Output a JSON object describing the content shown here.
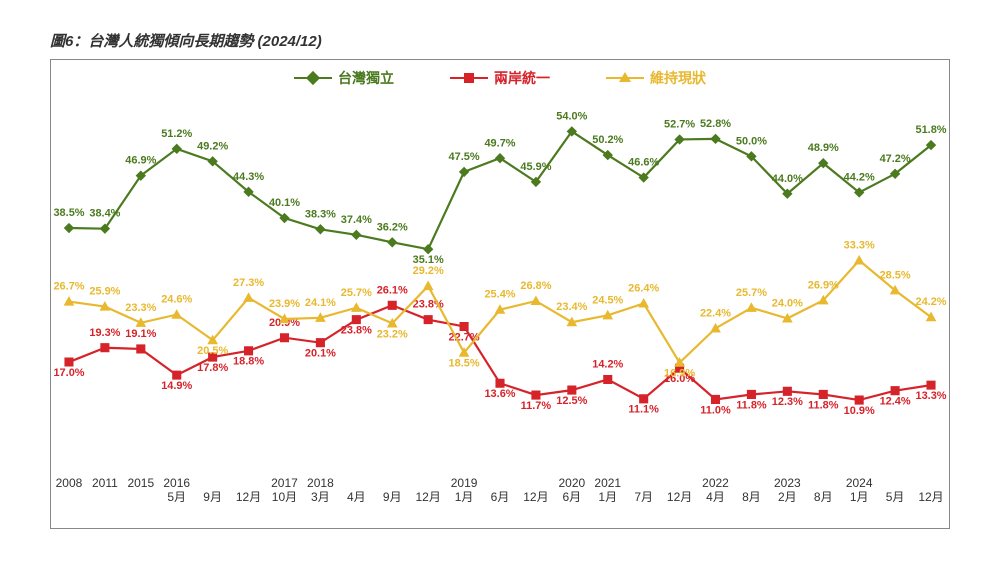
{
  "title": "圖6：台灣人統獨傾向長期趨勢  (2024/12)",
  "chart": {
    "type": "line",
    "background_color": "#ffffff",
    "border_color": "#888888",
    "label_fontsize": 11,
    "title_fontsize": 15,
    "ylim": [
      0,
      60
    ],
    "marker_size": 9,
    "line_width": 2.2,
    "categories": [
      "2008",
      "2011",
      "2015",
      "2016\n5月",
      "\n9月",
      "\n12月",
      "2017\n10月",
      "2018\n3月",
      "\n4月",
      "\n9月",
      "\n12月",
      "2019\n1月",
      "\n6月",
      "\n12月",
      "2020\n6月",
      "2021\n1月",
      "\n7月",
      "\n12月",
      "2022\n4月",
      "\n8月",
      "2023\n2月",
      "\n8月",
      "2024\n1月",
      "\n5月",
      "\n12月"
    ],
    "series": [
      {
        "name": "台灣獨立",
        "color": "#4b7a1f",
        "marker": "diamond",
        "values": [
          38.5,
          38.4,
          46.9,
          51.2,
          49.2,
          44.3,
          40.1,
          38.3,
          37.4,
          36.2,
          35.1,
          47.5,
          49.7,
          45.9,
          54.0,
          50.2,
          46.6,
          52.7,
          52.8,
          50.0,
          44.0,
          48.9,
          44.2,
          47.2,
          51.8
        ],
        "label_offset": [
          -12,
          -12,
          -12,
          -12,
          -12,
          -12,
          -12,
          -12,
          -12,
          -12,
          14,
          -12,
          -12,
          -12,
          -12,
          -12,
          -12,
          -12,
          -12,
          -12,
          -12,
          -12,
          -12,
          -12,
          -12
        ]
      },
      {
        "name": "兩岸統一",
        "color": "#d6232a",
        "marker": "square",
        "values": [
          17.0,
          19.3,
          19.1,
          14.9,
          17.8,
          18.8,
          20.9,
          20.1,
          23.8,
          26.1,
          23.8,
          22.7,
          13.6,
          11.7,
          12.5,
          14.2,
          11.1,
          16.0,
          11.0,
          11.8,
          12.3,
          11.8,
          10.9,
          12.4,
          13.3
        ],
        "label_offset": [
          14,
          -12,
          -12,
          14,
          14,
          14,
          -12,
          14,
          14,
          -12,
          -12,
          14,
          14,
          14,
          14,
          -12,
          14,
          14,
          14,
          14,
          14,
          14,
          14,
          14,
          14
        ]
      },
      {
        "name": "維持現狀",
        "color": "#e8b82e",
        "marker": "triangle",
        "values": [
          26.7,
          25.9,
          23.3,
          24.6,
          20.5,
          27.3,
          23.9,
          24.1,
          25.7,
          23.2,
          29.2,
          18.5,
          25.4,
          26.8,
          23.4,
          24.5,
          26.4,
          16.9,
          22.4,
          25.7,
          24.0,
          26.9,
          33.3,
          28.5,
          24.2
        ],
        "label_offset": [
          -12,
          -12,
          -12,
          -12,
          14,
          -12,
          -12,
          -12,
          -12,
          14,
          -12,
          14,
          -12,
          -12,
          -12,
          -12,
          -12,
          14,
          -12,
          -12,
          -12,
          -12,
          -12,
          -12,
          -12
        ]
      }
    ]
  }
}
